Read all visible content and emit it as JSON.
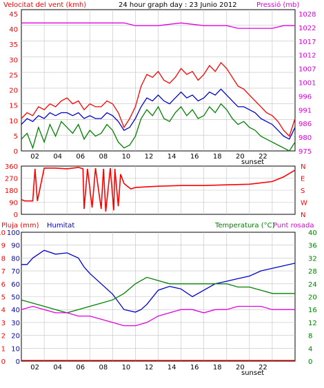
{
  "colors": {
    "wind_avg": "#ff0000",
    "wind_gust": "#ff0000",
    "wind_lo": "#008000",
    "wind_mid": "#0000cc",
    "pressure": "#e000e0",
    "direction": "#ff0000",
    "humidity": "#0000cc",
    "temperature": "#008000",
    "dewpoint": "#e000e0",
    "rain": "#ff0000",
    "grid": "#c0c0c0"
  },
  "chart_data": [
    {
      "type": "line",
      "title": "24 hour graph day : 23 Junio 2012",
      "left_label": "Velocitat del vent (kmh)",
      "right_label": "Pressió (mb)",
      "x_ticks": [
        "02",
        "04",
        "06",
        "08",
        "10",
        "12",
        "14",
        "16",
        "18",
        "20",
        "22",
        ""
      ],
      "x_note": "sunset",
      "y_left_ticks": [
        "0",
        "5",
        "10",
        "15",
        "20",
        "25",
        "30",
        "35",
        "40",
        "45"
      ],
      "y_left_lim": [
        0,
        48
      ],
      "y_right_ticks": [
        "975",
        "980",
        "986",
        "991",
        "996",
        "1001",
        "1007",
        "1012",
        "1017",
        "1022",
        "1028"
      ],
      "y_right_lim": [
        975,
        1028
      ],
      "series": [
        {
          "key": "gust",
          "color": "wind_gust",
          "axis": "left",
          "x": [
            0,
            0.5,
            1,
            1.5,
            2,
            2.5,
            3,
            3.5,
            4,
            4.5,
            5,
            5.5,
            6,
            6.5,
            7,
            7.5,
            8,
            8.5,
            9,
            9.5,
            10,
            10.5,
            11,
            11.5,
            12,
            12.5,
            13,
            13.5,
            14,
            14.5,
            15,
            15.5,
            16,
            16.5,
            17,
            17.5,
            18,
            18.5,
            19,
            19.5,
            20,
            20.5,
            21,
            21.5,
            22,
            22.5,
            23,
            23.5,
            24
          ],
          "y": [
            11,
            13,
            12,
            15,
            14,
            16,
            15,
            17,
            18,
            16,
            17,
            14,
            16,
            15,
            15,
            17,
            16,
            13,
            8,
            11,
            15,
            22,
            26,
            25,
            27,
            24,
            23,
            25,
            28,
            26,
            27,
            24,
            26,
            29,
            27,
            30,
            28,
            25,
            22,
            21,
            19,
            17,
            15,
            13,
            12,
            10,
            7,
            5,
            11
          ]
        },
        {
          "key": "mid",
          "color": "wind_mid",
          "axis": "left",
          "x": [
            0,
            0.5,
            1,
            1.5,
            2,
            2.5,
            3,
            3.5,
            4,
            4.5,
            5,
            5.5,
            6,
            6.5,
            7,
            7.5,
            8,
            8.5,
            9,
            9.5,
            10,
            10.5,
            11,
            11.5,
            12,
            12.5,
            13,
            13.5,
            14,
            14.5,
            15,
            15.5,
            16,
            16.5,
            17,
            17.5,
            18,
            18.5,
            19,
            19.5,
            20,
            20.5,
            21,
            21.5,
            22,
            22.5,
            23,
            23.5,
            24
          ],
          "y": [
            9,
            11,
            10,
            12,
            11,
            13,
            12,
            13,
            13,
            12,
            13,
            11,
            12,
            11,
            11,
            13,
            12,
            10,
            7,
            8,
            11,
            15,
            18,
            17,
            19,
            17,
            16,
            18,
            20,
            18,
            19,
            17,
            18,
            20,
            19,
            21,
            19,
            17,
            15,
            15,
            14,
            13,
            11,
            10,
            9,
            7,
            5,
            4,
            8
          ]
        },
        {
          "key": "lo",
          "color": "wind_lo",
          "axis": "left",
          "x": [
            0,
            0.5,
            1,
            1.5,
            2,
            2.5,
            3,
            3.5,
            4,
            4.5,
            5,
            5.5,
            6,
            6.5,
            7,
            7.5,
            8,
            8.5,
            9,
            9.5,
            10,
            10.5,
            11,
            11.5,
            12,
            12.5,
            13,
            13.5,
            14,
            14.5,
            15,
            15.5,
            16,
            16.5,
            17,
            17.5,
            18,
            18.5,
            19,
            19.5,
            20,
            20.5,
            21,
            21.5,
            22,
            22.5,
            23,
            23.5,
            24
          ],
          "y": [
            4,
            6,
            1,
            8,
            3,
            9,
            5,
            10,
            8,
            6,
            9,
            4,
            7,
            5,
            6,
            9,
            7,
            3,
            1,
            2,
            5,
            11,
            14,
            12,
            15,
            11,
            10,
            13,
            15,
            12,
            14,
            11,
            12,
            15,
            13,
            16,
            14,
            11,
            9,
            10,
            8,
            7,
            5,
            4,
            3,
            2,
            1,
            0,
            3
          ]
        },
        {
          "key": "press",
          "color": "pressure",
          "axis": "right",
          "x": [
            0,
            2,
            4,
            6,
            8,
            9,
            10,
            12,
            14,
            16,
            18,
            19,
            20,
            22,
            23,
            24
          ],
          "y": [
            1023,
            1023,
            1023,
            1023,
            1023,
            1023,
            1022,
            1022,
            1023,
            1022,
            1022,
            1021,
            1021,
            1021,
            1022,
            1022
          ]
        }
      ]
    },
    {
      "type": "line",
      "y_left_ticks": [
        "0",
        "90",
        "180",
        "270",
        "360"
      ],
      "y_left_lim": [
        0,
        360
      ],
      "y_right_ticks": [
        "N",
        "W",
        "S",
        "E",
        "N"
      ],
      "series": [
        {
          "key": "dir",
          "color": "direction",
          "axis": "left",
          "x": [
            0,
            0.3,
            1,
            1.2,
            1.4,
            2,
            3,
            4,
            5,
            5.4,
            5.5,
            5.8,
            6.2,
            6.5,
            7,
            7.2,
            7.4,
            7.8,
            8.1,
            8.2,
            8.5,
            8.7,
            9,
            9.3,
            9.6,
            10,
            11,
            12,
            14,
            16,
            18,
            20,
            22,
            23,
            24
          ],
          "y": [
            110,
            100,
            100,
            340,
            100,
            345,
            345,
            340,
            350,
            340,
            40,
            340,
            50,
            345,
            40,
            340,
            20,
            345,
            30,
            340,
            60,
            300,
            230,
            210,
            190,
            200,
            205,
            210,
            215,
            215,
            220,
            225,
            245,
            280,
            330
          ]
        }
      ]
    },
    {
      "type": "line",
      "left_label_1": "Pluja (mm)",
      "left_label_2": "Humitat",
      "right_label_1": "Temperatura (°C)",
      "right_label_2": "Punt rosada",
      "y_rain_ticks": [
        "0",
        "1",
        "2",
        "3",
        "4",
        "5",
        "6",
        "7",
        "8",
        "9",
        "10"
      ],
      "y_hum_ticks": [
        "0",
        "10",
        "20",
        "30",
        "40",
        "50",
        "60",
        "70",
        "80",
        "90",
        "100"
      ],
      "y_temp_ticks": [
        "0",
        "4",
        "8",
        "12",
        "16",
        "20",
        "24",
        "28",
        "32",
        "36",
        "40"
      ],
      "y_right_ticks": [
        "0",
        "4",
        "8",
        "12",
        "16",
        "20",
        "24",
        "28",
        "32",
        "36",
        "40"
      ],
      "x_ticks": [
        "02",
        "04",
        "06",
        "08",
        "10",
        "12",
        "14",
        "16",
        "18",
        "20",
        "22",
        ""
      ],
      "x_note": "sunset",
      "series": [
        {
          "key": "hum",
          "color": "humidity",
          "axis": "hum",
          "x": [
            0,
            0.5,
            1,
            2,
            3,
            4,
            5,
            5.5,
            6,
            7,
            8,
            9,
            10,
            10.5,
            11,
            12,
            13,
            14,
            15,
            16,
            17,
            18,
            19,
            20,
            21,
            22,
            23,
            24
          ],
          "y": [
            75,
            75,
            80,
            86,
            83,
            84,
            80,
            73,
            68,
            60,
            52,
            40,
            38,
            40,
            44,
            55,
            58,
            56,
            50,
            55,
            60,
            62,
            64,
            66,
            70,
            72,
            74,
            76
          ]
        },
        {
          "key": "temp",
          "color": "temperature",
          "axis": "temp",
          "x": [
            0,
            1,
            2,
            3,
            4,
            5,
            6,
            7,
            8,
            9,
            10,
            11,
            12,
            13,
            14,
            15,
            16,
            17,
            18,
            19,
            20,
            21,
            22,
            23,
            24
          ],
          "y": [
            19,
            18,
            17,
            16,
            15,
            16,
            17,
            18,
            19,
            21,
            24,
            26,
            25,
            24,
            24,
            24,
            24,
            24,
            24,
            23,
            23,
            22,
            21,
            21,
            21
          ]
        },
        {
          "key": "dew",
          "color": "dewpoint",
          "axis": "temp",
          "x": [
            0,
            1,
            2,
            3,
            4,
            5,
            6,
            7,
            8,
            9,
            10,
            11,
            12,
            13,
            14,
            15,
            16,
            17,
            18,
            19,
            20,
            21,
            22,
            23,
            24
          ],
          "y": [
            16,
            17,
            16,
            15,
            15,
            14,
            14,
            13,
            12,
            11,
            11,
            12,
            14,
            15,
            16,
            16,
            15,
            16,
            16,
            17,
            17,
            17,
            16,
            16,
            16
          ]
        },
        {
          "key": "rain",
          "color": "rain",
          "axis": "rain",
          "x": [
            0,
            24
          ],
          "y": [
            0,
            0
          ]
        }
      ]
    }
  ]
}
